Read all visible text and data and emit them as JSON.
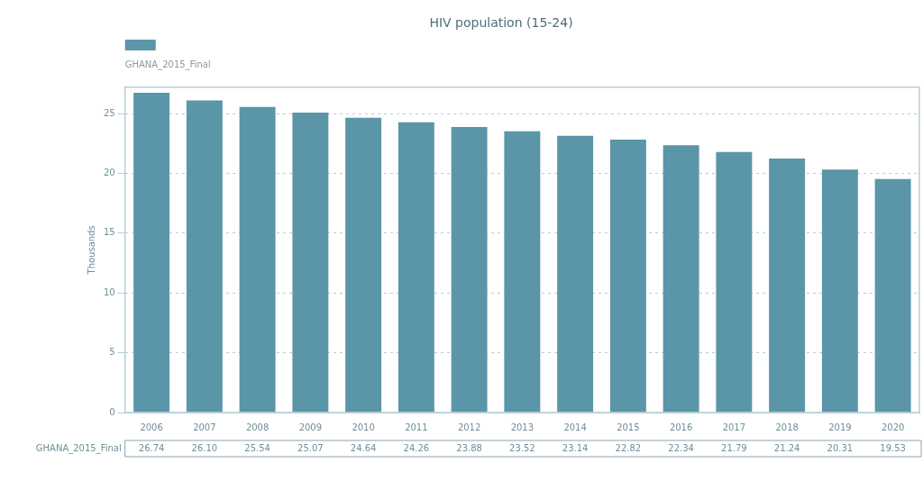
{
  "chart_data": {
    "type": "bar",
    "title": "HIV population (15-24)",
    "ylabel": "Thousands",
    "categories": [
      "2006",
      "2007",
      "2008",
      "2009",
      "2010",
      "2011",
      "2012",
      "2013",
      "2014",
      "2015",
      "2016",
      "2017",
      "2018",
      "2019",
      "2020"
    ],
    "series": [
      {
        "name": "GHANA_2015_Final",
        "color": "#5b95a8",
        "values": [
          26.74,
          26.1,
          25.54,
          25.07,
          24.64,
          24.26,
          23.88,
          23.52,
          23.14,
          22.82,
          22.34,
          21.79,
          21.24,
          20.31,
          19.53
        ],
        "value_labels": [
          "26.74",
          "26.10",
          "25.54",
          "25.07",
          "24.64",
          "24.26",
          "23.88",
          "23.52",
          "23.14",
          "22.82",
          "22.34",
          "21.79",
          "21.24",
          "20.31",
          "19.53"
        ]
      }
    ],
    "ylim": [
      0,
      27.2
    ],
    "yticks": [
      0,
      5,
      10,
      15,
      20,
      25
    ],
    "grid": "y",
    "legend": "top left"
  }
}
